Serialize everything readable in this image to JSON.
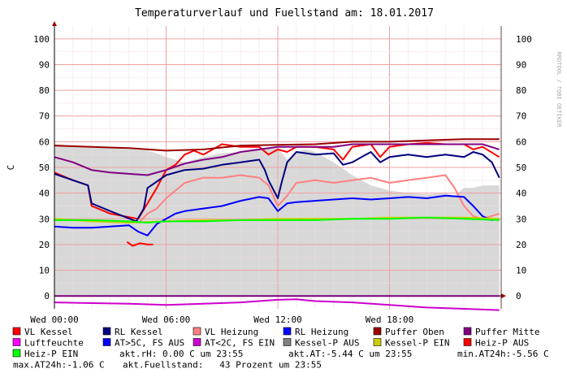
{
  "chart_data": {
    "type": "line",
    "title": "Temperaturverlauf und Fuellstand am: 18.01.2017",
    "watermark": "RRDTOOL / TOBI OETIKER",
    "ylabel": "C",
    "ylim": [
      -5,
      105
    ],
    "yticks": [
      0,
      10,
      20,
      30,
      40,
      50,
      60,
      70,
      80,
      90,
      100
    ],
    "xlim_hours": [
      0,
      24
    ],
    "xticks": [
      {
        "h": 0,
        "label": "Wed 00:00"
      },
      {
        "h": 6,
        "label": "Wed 06:00"
      },
      {
        "h": 12,
        "label": "Wed 12:00"
      },
      {
        "h": 18,
        "label": "Wed 18:00"
      }
    ],
    "grid": true,
    "background_area": {
      "name": "akt.Fuellstand",
      "color": "#d8d8d8",
      "points": [
        [
          0,
          59
        ],
        [
          1,
          58.5
        ],
        [
          2,
          58
        ],
        [
          3,
          57.5
        ],
        [
          4,
          57
        ],
        [
          5,
          56.5
        ],
        [
          5.5,
          55.5
        ],
        [
          6,
          54
        ],
        [
          6.5,
          53
        ],
        [
          7,
          52
        ],
        [
          8,
          54
        ],
        [
          9,
          55.5
        ],
        [
          10,
          56
        ],
        [
          11,
          57
        ],
        [
          12,
          57.5
        ],
        [
          12.5,
          53
        ],
        [
          13,
          56
        ],
        [
          13.5,
          57
        ],
        [
          14,
          56
        ],
        [
          15,
          52
        ],
        [
          16,
          47
        ],
        [
          17,
          43
        ],
        [
          18,
          41
        ],
        [
          19,
          40
        ],
        [
          20,
          39.5
        ],
        [
          21,
          40
        ],
        [
          21.5,
          39
        ],
        [
          22,
          42
        ],
        [
          22.5,
          42
        ],
        [
          23,
          43
        ],
        [
          23.9,
          43
        ]
      ]
    },
    "series": [
      {
        "name": "VL Kessel",
        "color": "#ff0000",
        "legend_swatch": "#ff0000",
        "values": [
          [
            0,
            48
          ],
          [
            1,
            45
          ],
          [
            1.8,
            43
          ],
          [
            2,
            35
          ],
          [
            3,
            32
          ],
          [
            4.5,
            30
          ],
          [
            5.5,
            42
          ],
          [
            6,
            49
          ],
          [
            6.5,
            51
          ],
          [
            7,
            55
          ],
          [
            7.5,
            56.5
          ],
          [
            8,
            55
          ],
          [
            8.5,
            57
          ],
          [
            9,
            59
          ],
          [
            10,
            58
          ],
          [
            11,
            58
          ],
          [
            11.5,
            55
          ],
          [
            12,
            57
          ],
          [
            12.5,
            56
          ],
          [
            13,
            58
          ],
          [
            14,
            58
          ],
          [
            15,
            57
          ],
          [
            15.5,
            53
          ],
          [
            16,
            58
          ],
          [
            17,
            59
          ],
          [
            17.5,
            54
          ],
          [
            18,
            58
          ],
          [
            19,
            59
          ],
          [
            20,
            59.5
          ],
          [
            21,
            59
          ],
          [
            22,
            59
          ],
          [
            22.5,
            57
          ],
          [
            23,
            58
          ],
          [
            23.9,
            54
          ]
        ]
      },
      {
        "name": "RL Kessel",
        "color": "#000080",
        "legend_swatch": "#000080",
        "values": [
          [
            0,
            47.5
          ],
          [
            1,
            45
          ],
          [
            1.8,
            43
          ],
          [
            2,
            36
          ],
          [
            3,
            33
          ],
          [
            4.4,
            29
          ],
          [
            4.8,
            34
          ],
          [
            5,
            42
          ],
          [
            6,
            47
          ],
          [
            7,
            49
          ],
          [
            8,
            49.5
          ],
          [
            9,
            51
          ],
          [
            10,
            52
          ],
          [
            11,
            53
          ],
          [
            11.3,
            49
          ],
          [
            11.5,
            45
          ],
          [
            12,
            38
          ],
          [
            12.2,
            44
          ],
          [
            12.5,
            52
          ],
          [
            13,
            56
          ],
          [
            14,
            55
          ],
          [
            15,
            55.5
          ],
          [
            15.5,
            51
          ],
          [
            16,
            52
          ],
          [
            16.5,
            54
          ],
          [
            17,
            56
          ],
          [
            17.5,
            52
          ],
          [
            18,
            54
          ],
          [
            19,
            55
          ],
          [
            20,
            54
          ],
          [
            21,
            55
          ],
          [
            22,
            54
          ],
          [
            22.5,
            56
          ],
          [
            23,
            55
          ],
          [
            23.5,
            52
          ],
          [
            23.9,
            46
          ]
        ]
      },
      {
        "name": "VL Heizung",
        "color": "#ff8080",
        "legend_swatch": "#ff8080",
        "values": [
          [
            4.6,
            29
          ],
          [
            5,
            32
          ],
          [
            5.5,
            34
          ],
          [
            6,
            38
          ],
          [
            6.5,
            41
          ],
          [
            7,
            44
          ],
          [
            8,
            46
          ],
          [
            9,
            46
          ],
          [
            10,
            47
          ],
          [
            11,
            46
          ],
          [
            11.5,
            43
          ],
          [
            12,
            35
          ],
          [
            12.5,
            39
          ],
          [
            13,
            44
          ],
          [
            14,
            45
          ],
          [
            15,
            44
          ],
          [
            16,
            45
          ],
          [
            17,
            46
          ],
          [
            18,
            44
          ],
          [
            19,
            45
          ],
          [
            20,
            46
          ],
          [
            21,
            47
          ],
          [
            21.5,
            42
          ],
          [
            22,
            35
          ],
          [
            22.5,
            31
          ],
          [
            23,
            30
          ],
          [
            23.9,
            32
          ]
        ]
      },
      {
        "name": "RL Heizung",
        "color": "#0000ff",
        "legend_swatch": "#0000ff",
        "values": [
          [
            0,
            27
          ],
          [
            1,
            26.5
          ],
          [
            2,
            26.5
          ],
          [
            3,
            27
          ],
          [
            4,
            27.5
          ],
          [
            4.5,
            25
          ],
          [
            5,
            23.5
          ],
          [
            5.5,
            28
          ],
          [
            6,
            30
          ],
          [
            6.5,
            32
          ],
          [
            7,
            33
          ],
          [
            8,
            34
          ],
          [
            9,
            35
          ],
          [
            10,
            37
          ],
          [
            11,
            38.5
          ],
          [
            11.5,
            38
          ],
          [
            12,
            33
          ],
          [
            12.5,
            36
          ],
          [
            13,
            36.5
          ],
          [
            14,
            37
          ],
          [
            15,
            37.5
          ],
          [
            16,
            38
          ],
          [
            17,
            37.5
          ],
          [
            18,
            38
          ],
          [
            19,
            38.5
          ],
          [
            20,
            38
          ],
          [
            21,
            39
          ],
          [
            22,
            38.5
          ],
          [
            22.5,
            35
          ],
          [
            23,
            31
          ],
          [
            23.5,
            29.5
          ],
          [
            23.9,
            30
          ]
        ]
      },
      {
        "name": "Puffer Oben",
        "color": "#990000",
        "legend_swatch": "#990000",
        "values": [
          [
            0,
            58.5
          ],
          [
            2,
            58
          ],
          [
            4,
            57.5
          ],
          [
            6,
            56.5
          ],
          [
            8,
            57
          ],
          [
            10,
            58.5
          ],
          [
            12,
            58.8
          ],
          [
            14,
            59
          ],
          [
            16,
            60
          ],
          [
            18,
            60
          ],
          [
            20,
            60.5
          ],
          [
            22,
            61
          ],
          [
            23.9,
            61
          ]
        ]
      },
      {
        "name": "Puffer Mitte",
        "color": "#800080",
        "legend_swatch": "#800080",
        "values": [
          [
            0,
            54
          ],
          [
            1,
            52
          ],
          [
            2,
            49
          ],
          [
            3,
            48
          ],
          [
            4,
            47.5
          ],
          [
            5,
            47
          ],
          [
            6,
            49
          ],
          [
            7,
            51.5
          ],
          [
            8,
            53
          ],
          [
            9,
            54
          ],
          [
            10,
            56
          ],
          [
            11,
            57
          ],
          [
            12,
            58
          ],
          [
            13,
            58
          ],
          [
            14,
            58
          ],
          [
            15,
            58
          ],
          [
            16,
            59
          ],
          [
            17,
            59
          ],
          [
            18,
            59
          ],
          [
            19,
            59
          ],
          [
            20,
            59
          ],
          [
            21,
            59
          ],
          [
            22,
            59
          ],
          [
            23,
            59
          ],
          [
            23.9,
            57
          ]
        ]
      },
      {
        "name": "Luftfeuchte",
        "color": "#ff00ff",
        "legend_swatch": "#ff00ff",
        "values": [
          [
            0,
            0
          ],
          [
            23.9,
            0
          ]
        ]
      },
      {
        "name": "AT>5C, FS AUS",
        "color": "#0000ff",
        "legend_swatch": "#0000ff",
        "values": []
      },
      {
        "name": "AT<2C, FS EIN",
        "color": "#cc00cc",
        "legend_swatch": "#cc00cc",
        "values": [
          [
            0,
            -2.5
          ],
          [
            2,
            -2.8
          ],
          [
            4,
            -3
          ],
          [
            6,
            -3.5
          ],
          [
            8,
            -3
          ],
          [
            10,
            -2.5
          ],
          [
            12,
            -1.5
          ],
          [
            13,
            -1.3
          ],
          [
            14,
            -2
          ],
          [
            16,
            -2.5
          ],
          [
            18,
            -3.5
          ],
          [
            20,
            -4.5
          ],
          [
            22,
            -5
          ],
          [
            23.9,
            -5.5
          ]
        ]
      },
      {
        "name": "Kessel-P AUS",
        "color": "#808080",
        "legend_swatch": "#808080",
        "values": []
      },
      {
        "name": "Kessel-P EIN",
        "color": "#cccc00",
        "legend_swatch": "#cccc00",
        "values": [
          [
            0,
            30
          ],
          [
            2,
            29
          ],
          [
            4,
            28.5
          ],
          [
            6,
            29
          ],
          [
            8,
            29.5
          ],
          [
            10,
            29.5
          ],
          [
            12,
            30
          ],
          [
            14,
            30
          ],
          [
            16,
            30
          ],
          [
            18,
            30.5
          ],
          [
            20,
            30.5
          ],
          [
            22,
            30.5
          ],
          [
            23.9,
            30
          ]
        ]
      },
      {
        "name": "Heiz-P AUS",
        "color": "#ff0000",
        "legend_swatch": "#ff0000",
        "values": [
          [
            3.9,
            21
          ],
          [
            4.2,
            19.5
          ],
          [
            4.6,
            20.5
          ],
          [
            5,
            20
          ],
          [
            5.3,
            20
          ]
        ]
      },
      {
        "name": "Heiz-P EIN",
        "color": "#00ff00",
        "legend_swatch": "#00ff00",
        "values": [
          [
            0,
            29.5
          ],
          [
            2,
            29.5
          ],
          [
            4,
            29
          ],
          [
            5,
            28.5
          ],
          [
            6,
            29
          ],
          [
            8,
            29
          ],
          [
            10,
            29.5
          ],
          [
            12,
            29.5
          ],
          [
            14,
            29.5
          ],
          [
            16,
            30
          ],
          [
            18,
            30
          ],
          [
            20,
            30.5
          ],
          [
            22,
            30
          ],
          [
            23.9,
            29.5
          ]
        ]
      }
    ],
    "legend_rows": [
      [
        "VL Kessel",
        "RL Kessel",
        "VL Heizung",
        "RL Heizung",
        "Puffer Oben",
        "Puffer Mitte"
      ],
      [
        "Luftfeuchte",
        "AT>5C, FS AUS",
        "AT<2C, FS EIN",
        "Kessel-P AUS",
        "Kessel-P EIN",
        "Heiz-P AUS"
      ],
      [
        "Heiz-P EIN"
      ]
    ],
    "status": {
      "line3": [
        "akt.rH: 0.00 C um 23:55",
        "akt.AT:-5.44 C um 23:55",
        "min.AT24h:-5.56 C"
      ],
      "line4": [
        "max.AT24h:-1.06 C",
        "akt.Fuellstand:   43 Prozent um 23:55"
      ]
    }
  }
}
